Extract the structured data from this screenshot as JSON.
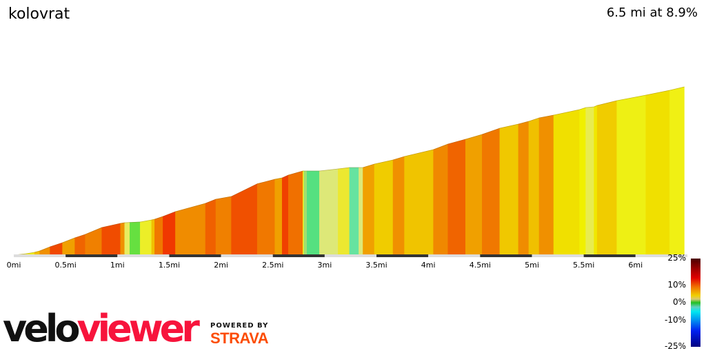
{
  "header": {
    "title": "kolovrat",
    "summary": "6.5 mi at 8.9%"
  },
  "chart_data": {
    "type": "area",
    "title": "kolovrat",
    "xlabel": "",
    "ylabel": "",
    "x_unit": "mi",
    "xlim": [
      0,
      6.5
    ],
    "x_ticks": [
      "0mi",
      "0.5mi",
      "1mi",
      "1.5mi",
      "2mi",
      "2.5mi",
      "3mi",
      "3.5mi",
      "4mi",
      "4.5mi",
      "5mi",
      "5.5mi",
      "6mi"
    ],
    "x_tick_values": [
      0,
      0.5,
      1,
      1.5,
      2,
      2.5,
      3,
      3.5,
      4,
      4.5,
      5,
      5.5,
      6
    ],
    "grid": false,
    "profile_points": [
      [
        0,
        0
      ],
      [
        0.12,
        25
      ],
      [
        0.2,
        50
      ],
      [
        0.25,
        76
      ],
      [
        0.35,
        151
      ],
      [
        0.47,
        227
      ],
      [
        0.59,
        315
      ],
      [
        0.69,
        378
      ],
      [
        0.85,
        504
      ],
      [
        1.03,
        580
      ],
      [
        1.07,
        592
      ],
      [
        1.12,
        597
      ],
      [
        1.22,
        605
      ],
      [
        1.33,
        643
      ],
      [
        1.36,
        655
      ],
      [
        1.44,
        706
      ],
      [
        1.56,
        794
      ],
      [
        1.85,
        945
      ],
      [
        1.95,
        1021
      ],
      [
        2.1,
        1071
      ],
      [
        2.35,
        1302
      ],
      [
        2.52,
        1386
      ],
      [
        2.59,
        1411
      ],
      [
        2.65,
        1462
      ],
      [
        2.79,
        1537
      ],
      [
        2.8,
        1537
      ],
      [
        2.83,
        1537
      ],
      [
        2.95,
        1537
      ],
      [
        3.13,
        1575
      ],
      [
        3.24,
        1600
      ],
      [
        3.33,
        1600
      ],
      [
        3.37,
        1600
      ],
      [
        3.48,
        1663
      ],
      [
        3.66,
        1739
      ],
      [
        3.77,
        1802
      ],
      [
        4.05,
        1928
      ],
      [
        4.19,
        2029
      ],
      [
        4.36,
        2117
      ],
      [
        4.52,
        2205
      ],
      [
        4.69,
        2318
      ],
      [
        4.87,
        2394
      ],
      [
        4.97,
        2444
      ],
      [
        5.07,
        2507
      ],
      [
        5.21,
        2558
      ],
      [
        5.46,
        2659
      ],
      [
        5.52,
        2696
      ],
      [
        5.6,
        2709
      ],
      [
        5.63,
        2734
      ],
      [
        5.82,
        2822
      ],
      [
        6.1,
        2923
      ],
      [
        6.33,
        3011
      ],
      [
        6.47,
        3074
      ]
    ],
    "segment_colors": [
      "#e6e65a",
      "#f0ee1e",
      "#f0c000",
      "#f09000",
      "#f04800",
      "#f0a000",
      "#f06400",
      "#f08000",
      "#f04c00",
      "#f09000",
      "#e8ec60",
      "#66e040",
      "#ecee28",
      "#f0c000",
      "#f07800",
      "#f03800",
      "#f08c00",
      "#f06000",
      "#f08000",
      "#f05000",
      "#f07800",
      "#f0a000",
      "#f04000",
      "#f07000",
      "#f0f020",
      "#a0e070",
      "#55e080",
      "#dde878",
      "#ece830",
      "#66e3a0",
      "#dde878",
      "#f0a000",
      "#f0cc00",
      "#f09000",
      "#f0c400",
      "#f08800",
      "#f06400",
      "#f0a000",
      "#f07800",
      "#f0c800",
      "#f08c00",
      "#f0c000",
      "#f09000",
      "#f0e000",
      "#f0f000",
      "#e8ec50",
      "#f0e800",
      "#f0cc00",
      "#eef014",
      "#f0e000",
      "#f0f014"
    ],
    "legend": {
      "type": "gradient-colorbar",
      "placement": "bottom-right",
      "labels": [
        "25%",
        "10%",
        "0%",
        "-10%",
        "-25%"
      ],
      "label_values": [
        25,
        10,
        0,
        -10,
        -25
      ]
    }
  },
  "branding": {
    "logo_part1": "velo",
    "logo_part2": "viewer",
    "powered_by": "POWERED BY",
    "strava": "STRAVA"
  },
  "colors": {
    "viewer_red": "#f7143c",
    "strava_orange": "#fc4c02",
    "axis_dark": "#333333",
    "axis_light": "#dddddd"
  }
}
